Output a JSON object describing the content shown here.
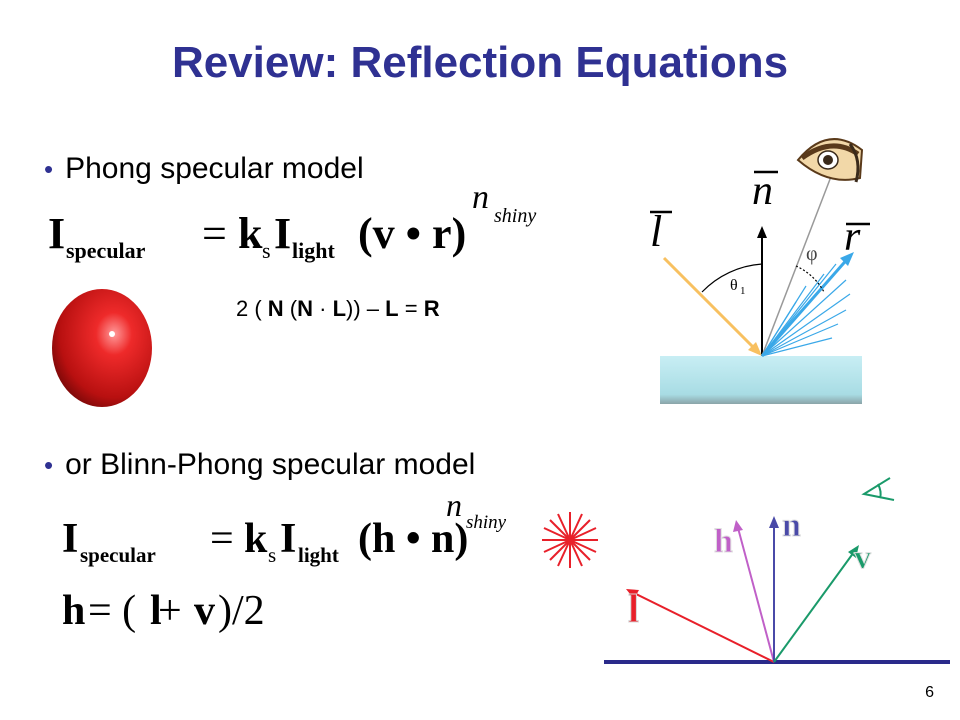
{
  "slide": {
    "title": "Review: Reflection Equations",
    "page_number": "6"
  },
  "bullets": [
    {
      "text": "Phong specular model"
    },
    {
      "text": "or Blinn-Phong specular model"
    }
  ],
  "equations": {
    "phong": {
      "I": "I",
      "I_sub": "specular",
      "eq": "=",
      "k": "k",
      "k_sub": "s",
      "I2": "I",
      "I2_sub": "light",
      "body": "(v • r)",
      "exp_n": "n",
      "exp_sub": "shiny"
    },
    "reflection": {
      "pre": "2 ( ",
      "N1": "N",
      "mid1": " (",
      "N2": "N",
      "dot": " · ",
      "L1": "L",
      "mid2": ")) – ",
      "L2": "L",
      "eq": " = ",
      "R": "R"
    },
    "blinn": {
      "I": "I",
      "I_sub": "specular",
      "eq": "=",
      "k": "k",
      "k_sub": "s",
      "I2": "I",
      "I2_sub": "light",
      "body": "(h • n)",
      "exp_n": "n",
      "exp_sub": "shiny"
    },
    "halfway": {
      "lhs": "h",
      "eq": "= (",
      "l": "l",
      "plus": " + ",
      "v": "v",
      "rest": ")/2"
    }
  },
  "phong_diagram": {
    "labels": {
      "l": "l",
      "n": "n",
      "r": "r",
      "theta": "θ",
      "theta_sub": "1",
      "phi": "φ"
    }
  },
  "blinn_diagram": {
    "labels": {
      "l": "l",
      "h": "h",
      "n": "n",
      "v": "v"
    },
    "colors": {
      "l": "#e8202a",
      "h": "#c060c8",
      "n": "#4a4aa8",
      "v": "#1a9a6a"
    }
  },
  "colors": {
    "title": "#2f3192",
    "bullet": "#2f3192",
    "sphere": "#d81818",
    "starburst": "#e8202a"
  }
}
